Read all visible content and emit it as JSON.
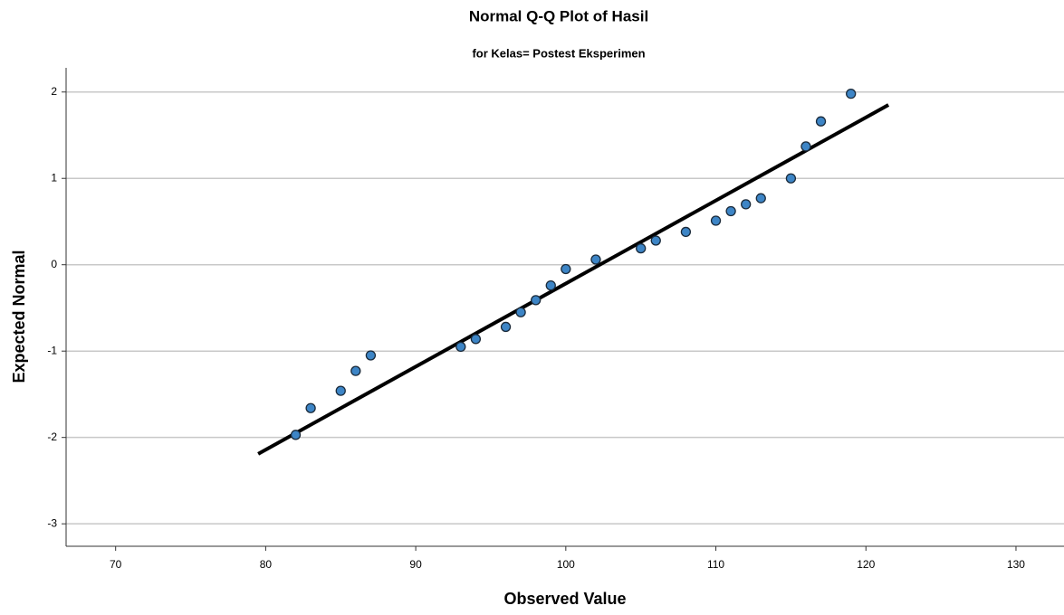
{
  "chart_data": {
    "type": "scatter",
    "title": "Normal Q-Q Plot of Hasil",
    "subtitle": "for Kelas= Postest Eksperimen",
    "x_label": "Observed Value",
    "y_label": "Expected Normal",
    "x": [
      82,
      83,
      85,
      86,
      87,
      93,
      94,
      96,
      97,
      98,
      99,
      100,
      102,
      105,
      106,
      108,
      110,
      111,
      112,
      113,
      115,
      116,
      117,
      119
    ],
    "values": [
      -1.97,
      -1.66,
      -1.46,
      -1.23,
      -1.05,
      -0.95,
      -0.86,
      -0.72,
      -0.55,
      -0.41,
      -0.24,
      -0.05,
      0.06,
      0.19,
      0.28,
      0.38,
      0.51,
      0.62,
      0.7,
      0.77,
      1.0,
      1.37,
      1.66,
      1.98
    ],
    "color": "#3d85c6",
    "reference_line": {
      "x": [
        79.5,
        121.5
      ],
      "values": [
        -2.19,
        1.85
      ],
      "color": "#000000"
    },
    "xlim": [
      66.7,
      133.2
    ],
    "xticks": [
      70,
      80,
      90,
      100,
      110,
      120,
      130
    ],
    "ylim": [
      -3.26,
      2.28
    ],
    "yticks": [
      -3,
      -2,
      -1,
      0,
      1,
      2
    ],
    "grid": true
  }
}
